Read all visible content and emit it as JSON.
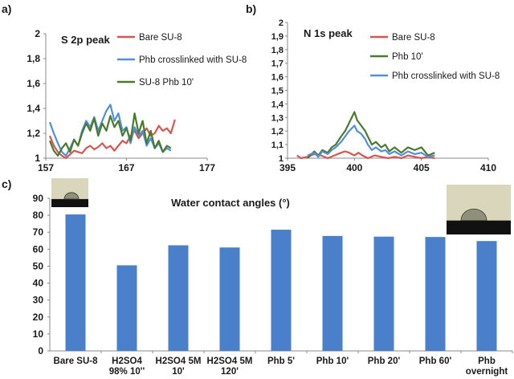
{
  "panels": {
    "a": "a)",
    "b": "b)",
    "c": "c)"
  },
  "colors": {
    "red": "#d9534f",
    "blue": "#4f8fdc",
    "green": "#4a7a2c",
    "bar": "#4a7fc9",
    "axis": "#888888",
    "text": "#1a1a1a"
  },
  "chart_data": [
    {
      "type": "line",
      "title": "S 2p peak",
      "xlim": [
        157,
        177
      ],
      "ylim": [
        1,
        2
      ],
      "xticks": [
        "157",
        "167",
        "177"
      ],
      "yticks": [
        "1",
        "1,2",
        "1,4",
        "1,6",
        "1,8",
        "2"
      ],
      "legend_position": "top-right",
      "series": [
        {
          "name": "Bare SU-8",
          "color": "#d9534f",
          "x": [
            157.5,
            158,
            158.5,
            159,
            159.5,
            160,
            160.5,
            161,
            161.5,
            162,
            162.5,
            163,
            163.5,
            164,
            164.5,
            165,
            165.5,
            166,
            166.5,
            167,
            167.5,
            168,
            168.5,
            169,
            169.5,
            170,
            170.5,
            171,
            171.5,
            172,
            172.5,
            173
          ],
          "y": [
            1.18,
            1.1,
            1.05,
            1.02,
            1.0,
            1.03,
            1.06,
            1.05,
            1.04,
            1.08,
            1.1,
            1.07,
            1.09,
            1.12,
            1.08,
            1.1,
            1.06,
            1.1,
            1.14,
            1.12,
            1.18,
            1.22,
            1.16,
            1.2,
            1.24,
            1.18,
            1.2,
            1.26,
            1.22,
            1.24,
            1.2,
            1.31
          ]
        },
        {
          "name": "Phb crosslinked with SU-8",
          "color": "#4f8fdc",
          "x": [
            157.5,
            158,
            158.5,
            159,
            159.5,
            160,
            160.5,
            161,
            161.5,
            162,
            162.5,
            163,
            163.5,
            164,
            164.5,
            165,
            165.5,
            166,
            166.5,
            167,
            167.5,
            168,
            168.5,
            169,
            169.5,
            170,
            170.5,
            171,
            171.5,
            172,
            172.5
          ],
          "y": [
            1.29,
            1.2,
            1.12,
            1.05,
            1.02,
            1.08,
            1.15,
            1.1,
            1.22,
            1.3,
            1.25,
            1.33,
            1.22,
            1.3,
            1.38,
            1.43,
            1.3,
            1.36,
            1.22,
            1.25,
            1.12,
            1.25,
            1.18,
            1.22,
            1.1,
            1.16,
            1.08,
            1.12,
            1.05,
            1.08,
            1.06
          ]
        },
        {
          "name": "SU-8 Phb 10'",
          "color": "#4a7a2c",
          "x": [
            157.5,
            158,
            158.5,
            159,
            159.5,
            160,
            160.5,
            161,
            161.5,
            162,
            162.5,
            163,
            163.5,
            164,
            164.5,
            165,
            165.5,
            166,
            166.5,
            167,
            167.5,
            168,
            168.5,
            169,
            169.5,
            170,
            170.5,
            171,
            171.5,
            172,
            172.5
          ],
          "y": [
            1.14,
            1.06,
            1.02,
            1.08,
            1.12,
            1.05,
            1.15,
            1.1,
            1.2,
            1.28,
            1.22,
            1.32,
            1.18,
            1.28,
            1.22,
            1.34,
            1.25,
            1.3,
            1.18,
            1.24,
            1.14,
            1.36,
            1.2,
            1.3,
            1.12,
            1.22,
            1.08,
            1.14,
            1.05,
            1.1,
            1.08
          ]
        }
      ]
    },
    {
      "type": "line",
      "title": "N 1s peak",
      "xlim": [
        395,
        410
      ],
      "ylim": [
        1,
        2
      ],
      "xticks": [
        "395",
        "400",
        "405",
        "410"
      ],
      "yticks": [
        "1",
        "1,1",
        "1,2",
        "1,3",
        "1,4",
        "1,5",
        "1,6",
        "1,7",
        "1,8",
        "1,9",
        "2"
      ],
      "legend_position": "top-right",
      "series": [
        {
          "name": "Bare SU-8",
          "color": "#d9534f",
          "x": [
            395.7,
            396,
            396.5,
            397,
            397.5,
            398,
            398.5,
            399,
            399.3,
            399.6,
            400,
            400.3,
            400.6,
            401,
            401.5,
            402,
            402.5,
            403,
            403.5,
            404,
            404.5,
            405,
            405.5,
            406
          ],
          "y": [
            1.02,
            1.0,
            1.01,
            1.03,
            1.02,
            1.0,
            1.02,
            1.04,
            1.05,
            1.04,
            1.02,
            1.04,
            1.02,
            1.0,
            1.02,
            1.01,
            1.0,
            1.01,
            1.0,
            1.02,
            1.01,
            1.0,
            1.01,
            1.0
          ]
        },
        {
          "name": "Phb 10'",
          "color": "#4a7a2c",
          "x": [
            396.5,
            397,
            397.3,
            397.6,
            398,
            398.3,
            398.6,
            399,
            399.3,
            399.6,
            399.8,
            400,
            400.2,
            400.5,
            400.8,
            401,
            401.3,
            401.6,
            402,
            402.3,
            402.6,
            403,
            403.5,
            404,
            404.5,
            405,
            405.5,
            406
          ],
          "y": [
            1.0,
            1.05,
            1.02,
            1.06,
            1.04,
            1.08,
            1.1,
            1.16,
            1.2,
            1.26,
            1.3,
            1.34,
            1.28,
            1.24,
            1.2,
            1.16,
            1.1,
            1.12,
            1.08,
            1.1,
            1.05,
            1.08,
            1.04,
            1.08,
            1.06,
            1.08,
            1.02,
            1.04
          ]
        },
        {
          "name": "Phb crosslinked with SU-8",
          "color": "#4f8fdc",
          "x": [
            396.5,
            397,
            397.3,
            397.6,
            398,
            398.3,
            398.6,
            399,
            399.3,
            399.6,
            399.8,
            400,
            400.2,
            400.5,
            400.8,
            401,
            401.3,
            401.6,
            402,
            402.3,
            402.6,
            403,
            403.5,
            404,
            404.5,
            405,
            405.5,
            406
          ],
          "y": [
            1.02,
            1.04,
            1.01,
            1.05,
            1.03,
            1.06,
            1.08,
            1.12,
            1.16,
            1.2,
            1.22,
            1.24,
            1.2,
            1.18,
            1.14,
            1.1,
            1.06,
            1.08,
            1.05,
            1.06,
            1.03,
            1.05,
            1.02,
            1.05,
            1.03,
            1.04,
            1.01,
            1.02
          ]
        }
      ]
    },
    {
      "type": "bar",
      "title": "Water contact angles (°)",
      "ylim": [
        0,
        90
      ],
      "yticks": [
        "0",
        "10",
        "20",
        "30",
        "40",
        "50",
        "60",
        "70",
        "80",
        "90"
      ],
      "categories": [
        [
          "Bare SU-8"
        ],
        [
          "H2SO4",
          "98% 10''"
        ],
        [
          "H2SO4 5M",
          "10'"
        ],
        [
          "H2SO4 5M",
          "120'"
        ],
        [
          "Phb 5'"
        ],
        [
          "Phb 10'"
        ],
        [
          "Phb 20'"
        ],
        [
          "Phb 60'"
        ],
        [
          "Phb",
          "overnight"
        ]
      ],
      "values": [
        80.5,
        50.5,
        62.3,
        61.0,
        71.5,
        67.8,
        67.4,
        67.2,
        64.8
      ],
      "color": "#4a7fc9"
    }
  ]
}
